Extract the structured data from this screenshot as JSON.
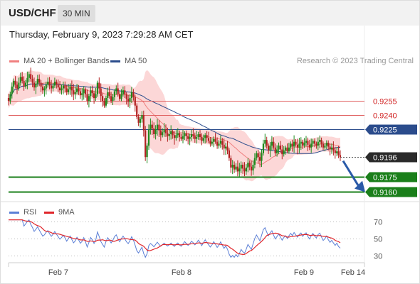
{
  "header": {
    "symbol": "USD/CHF",
    "timeframe": "30 MIN"
  },
  "datetime": "Thursday, February 9, 2023 7:29:28 AM CET",
  "legend": [
    {
      "label": "MA 20 + Bollinger Bands",
      "color": "#f08080"
    },
    {
      "label": "MA 50",
      "color": "#2b4c8c"
    }
  ],
  "copyright": "Research © 2023 Trading Central",
  "rsi_legend": [
    {
      "label": "RSI",
      "color": "#5b7fd6"
    },
    {
      "label": "9MA",
      "color": "#e0262b"
    }
  ],
  "colors": {
    "up": "#1f8a1f",
    "down": "#b22222",
    "support": "#1a7f1a",
    "pivot": "#2b4c8c",
    "resistance": "#e06060",
    "arrow": "#2a5aa8",
    "band": "#fbd0d0"
  },
  "chart_data": [
    {
      "type": "candlestick",
      "xaxis_labels": [
        "Feb 7",
        "Feb 8",
        "Feb 9",
        "Feb 14"
      ],
      "ylim": [
        0.915,
        0.929
      ],
      "levels": [
        {
          "value": 0.9255,
          "label": "0.9255",
          "style": "resistance"
        },
        {
          "value": 0.924,
          "label": "0.9240",
          "style": "resistance"
        },
        {
          "value": 0.9225,
          "label": "0.9225",
          "style": "pivot"
        },
        {
          "value": 0.9196,
          "label": "0.9196",
          "style": "last"
        },
        {
          "value": 0.9175,
          "label": "0.9175",
          "style": "support"
        },
        {
          "value": 0.916,
          "label": "0.9160",
          "style": "support"
        }
      ],
      "forecast": {
        "from": 0.9192,
        "to": 0.916,
        "direction": "down"
      },
      "close": [
        0.9255,
        0.9262,
        0.927,
        0.9276,
        0.9272,
        0.9268,
        0.9274,
        0.928,
        0.9276,
        0.927,
        0.9274,
        0.9279,
        0.9283,
        0.9278,
        0.9274,
        0.9269,
        0.9273,
        0.9278,
        0.9274,
        0.927,
        0.9266,
        0.9268,
        0.9272,
        0.9275,
        0.9271,
        0.9268,
        0.9271,
        0.9275,
        0.9272,
        0.9269,
        0.9266,
        0.9268,
        0.9271,
        0.9268,
        0.9264,
        0.9267,
        0.927,
        0.9266,
        0.9262,
        0.9264,
        0.9268,
        0.9265,
        0.9261,
        0.9263,
        0.9267,
        0.9262,
        0.9255,
        0.926,
        0.9266,
        0.9263,
        0.9258,
        0.9262,
        0.9274,
        0.9268,
        0.926,
        0.9255,
        0.925,
        0.9258,
        0.9264,
        0.926,
        0.9255,
        0.9259,
        0.9265,
        0.9268,
        0.9262,
        0.9257,
        0.9262,
        0.9266,
        0.9262,
        0.9257,
        0.9254,
        0.9258,
        0.9264,
        0.9259,
        0.925,
        0.9238,
        0.9232,
        0.9236,
        0.924,
        0.9224,
        0.9196,
        0.9208,
        0.9225,
        0.923,
        0.9226,
        0.922,
        0.9225,
        0.923,
        0.9224,
        0.9219,
        0.9222,
        0.9225,
        0.9221,
        0.9218,
        0.922,
        0.9223,
        0.9219,
        0.9216,
        0.9219,
        0.9221,
        0.9217,
        0.9215,
        0.9218,
        0.9221,
        0.9218,
        0.9215,
        0.9217,
        0.922,
        0.9218,
        0.9215,
        0.9217,
        0.922,
        0.9217,
        0.9213,
        0.9216,
        0.9219,
        0.9216,
        0.9213,
        0.921,
        0.9212,
        0.9215,
        0.9212,
        0.9208,
        0.921,
        0.9213,
        0.9209,
        0.9205,
        0.9207,
        0.9203,
        0.9195,
        0.9185,
        0.9188,
        0.9183,
        0.9186,
        0.9181,
        0.9184,
        0.9188,
        0.9184,
        0.9181,
        0.9185,
        0.919,
        0.9186,
        0.9182,
        0.9188,
        0.9195,
        0.92,
        0.9196,
        0.9192,
        0.92,
        0.921,
        0.9214,
        0.9208,
        0.9203,
        0.9208,
        0.9212,
        0.9206,
        0.92,
        0.9204,
        0.9208,
        0.9204,
        0.9199,
        0.9203,
        0.9206,
        0.9202,
        0.9206,
        0.921,
        0.9207,
        0.9212,
        0.9209,
        0.9206,
        0.921,
        0.9212,
        0.9208,
        0.9211,
        0.9213,
        0.9209,
        0.9206,
        0.921,
        0.9213,
        0.921,
        0.9208,
        0.9212,
        0.9214,
        0.921,
        0.9206,
        0.9208,
        0.9211,
        0.9207,
        0.9204,
        0.9206,
        0.9203,
        0.92,
        0.9202,
        0.9198,
        0.9196
      ]
    },
    {
      "type": "line",
      "title": "RSI",
      "ylim": [
        25,
        75
      ],
      "y_ticks": [
        "70",
        "50",
        "30"
      ]
    }
  ]
}
